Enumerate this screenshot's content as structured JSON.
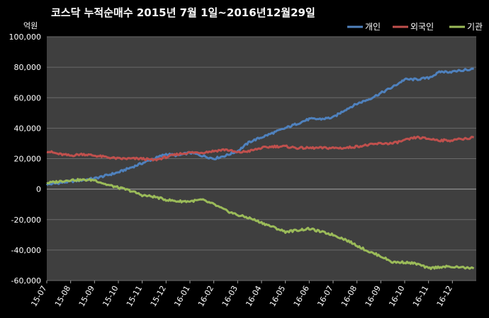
{
  "chart_data": {
    "type": "line",
    "title": "코스닥  누적순매수 2015년 7월 1일~2016년12월29일",
    "ylabel": "억원",
    "xlabel": "",
    "ylim": [
      -60000,
      100000
    ],
    "yticks": [
      "100,000",
      "80,000",
      "60,000",
      "40,000",
      "20,000",
      "0",
      "-20,000",
      "-40,000",
      "-60,000"
    ],
    "ytick_values": [
      100000,
      80000,
      60000,
      40000,
      20000,
      0,
      -20000,
      -40000,
      -60000
    ],
    "categories": [
      "15-07",
      "15-08",
      "15-09",
      "15-10",
      "15-11",
      "15-12",
      "16-01",
      "16-02",
      "16-03",
      "16-04",
      "16-05",
      "16-06",
      "16-07",
      "16-08",
      "16-09",
      "16-10",
      "16-11",
      "16-12"
    ],
    "x": [
      0,
      0.5,
      1,
      1.5,
      2,
      2.5,
      3,
      3.5,
      4,
      4.5,
      5,
      5.5,
      6,
      6.5,
      7,
      7.5,
      8,
      8.5,
      9,
      9.5,
      10,
      10.5,
      11,
      11.5,
      12,
      12.5,
      13,
      13.5,
      14,
      14.5,
      15,
      15.5,
      16,
      16.5,
      17,
      17.9
    ],
    "grid": true,
    "legend_position": "top-right",
    "background": "#3f3f3f",
    "series": [
      {
        "name": "개인",
        "color": "#4f81bd",
        "values": [
          3000,
          4000,
          5000,
          6000,
          7000,
          9000,
          11000,
          14000,
          17000,
          20000,
          23000,
          22000,
          24000,
          22000,
          20000,
          22000,
          25000,
          31000,
          34000,
          37000,
          40000,
          43000,
          46000,
          46000,
          47000,
          52000,
          56000,
          59000,
          63000,
          67000,
          72000,
          72000,
          73000,
          77000,
          77000,
          79000
        ]
      },
      {
        "name": "외국인",
        "color": "#c0504d",
        "values": [
          25000,
          23000,
          22000,
          23000,
          22000,
          21000,
          20000,
          20000,
          20000,
          19000,
          21000,
          23000,
          24000,
          24000,
          25000,
          26000,
          24000,
          25000,
          27000,
          28000,
          28000,
          27000,
          27000,
          27000,
          27000,
          27000,
          28000,
          29000,
          30000,
          30000,
          32000,
          34000,
          33000,
          32000,
          32000,
          34000
        ]
      },
      {
        "name": "기관",
        "color": "#9bbb59",
        "values": [
          4000,
          5000,
          6000,
          6000,
          6000,
          3000,
          1000,
          -1000,
          -4000,
          -5000,
          -7000,
          -8000,
          -8000,
          -7000,
          -10000,
          -14000,
          -17000,
          -19000,
          -22000,
          -25000,
          -28000,
          -27000,
          -26000,
          -28000,
          -30000,
          -33000,
          -37000,
          -41000,
          -44000,
          -48000,
          -48000,
          -49000,
          -52000,
          -51000,
          -51000,
          -52000
        ]
      }
    ]
  }
}
